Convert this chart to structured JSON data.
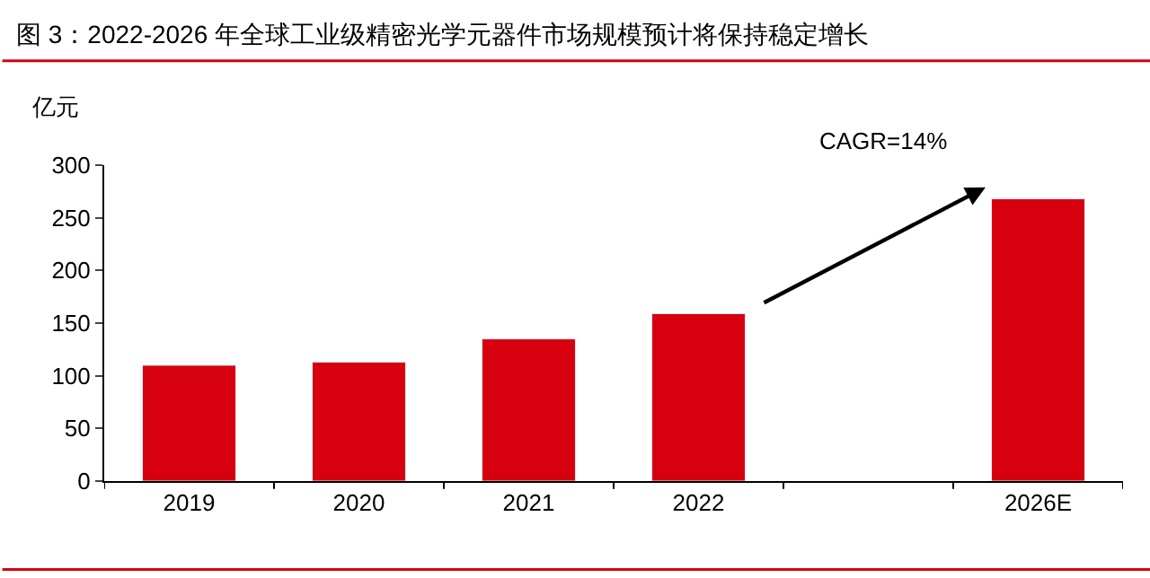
{
  "chart_data": {
    "type": "bar",
    "title": "图 3：2022-2026 年全球工业级精密光学元器件市场规模预计将保持稳定增长",
    "ylabel": "亿元",
    "categories": [
      "2019",
      "2020",
      "2021",
      "2022",
      null,
      "2026E"
    ],
    "values": [
      110,
      113,
      135,
      159,
      null,
      268
    ],
    "color": "#d7000f",
    "ylim": [
      0,
      300
    ],
    "yticks": [
      0,
      50,
      100,
      150,
      200,
      250,
      300
    ],
    "grid": false,
    "legend": false,
    "annotations": [
      "CAGR=14%"
    ]
  }
}
